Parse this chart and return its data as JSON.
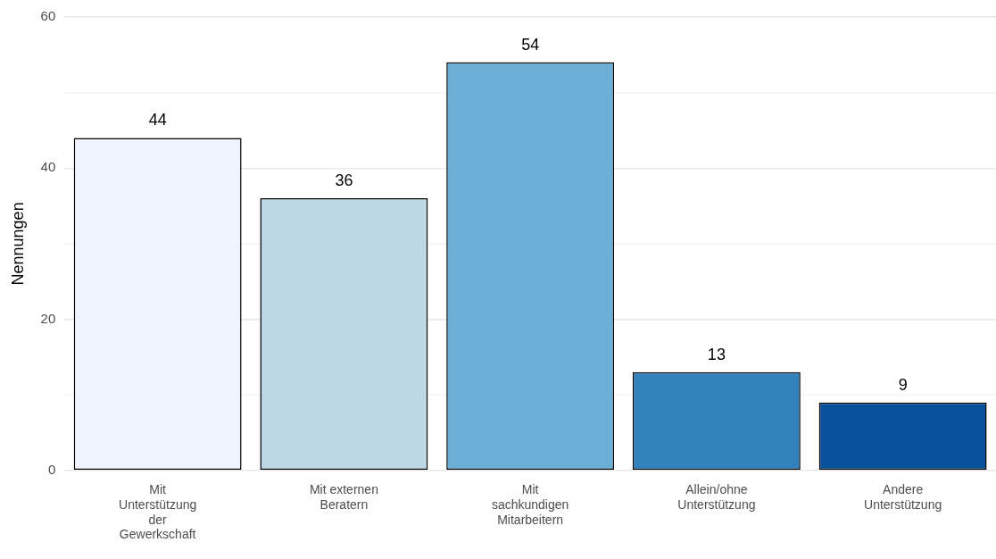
{
  "chart_data": {
    "type": "bar",
    "ylabel": "Nennungen",
    "categories": [
      "Mit\nUnterstützung\nder\nGewerkschaft",
      "Mit externen\nBeratern",
      "Mit\nsachkundigen\nMitarbeitern",
      "Allein/ohne\nUnterstützung",
      "Andere\nUnterstützung"
    ],
    "values": [
      44,
      36,
      54,
      13,
      9
    ],
    "colors": [
      "#eff3ff",
      "#bdd7e7",
      "#6baed6",
      "#3182bd",
      "#08519c"
    ],
    "ylim": [
      0,
      60
    ],
    "yticks": [
      0,
      {
        "value": 10,
        "label": null
      },
      20,
      {
        "value": 30,
        "label": null
      },
      40,
      {
        "value": 50,
        "label": null
      },
      60
    ],
    "grid": "y",
    "data_labels": true,
    "legend": false
  }
}
